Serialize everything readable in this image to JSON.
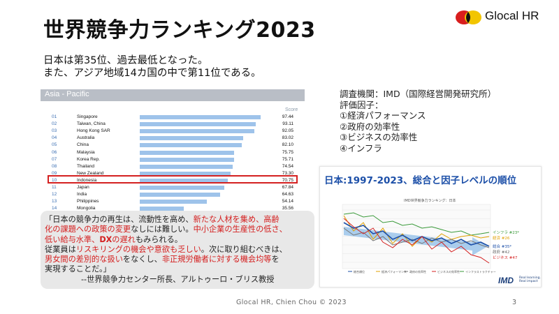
{
  "slide": {
    "title": "世界競争力ランキング2023",
    "logo_text": "Glocal HR",
    "intro_line1": "日本は第35位、過去最低となった。",
    "intro_line2": "また、アジア地域14カ国の中で第11位である。",
    "footer": "Glocal HR, Chien Chou © 2023",
    "page_number": "3"
  },
  "asia_pacific": {
    "header": "Asia - Pacific",
    "score_label": "Score",
    "rows": [
      {
        "rank": "01",
        "country": "Singapore",
        "score": "97.44"
      },
      {
        "rank": "02",
        "country": "Taiwan, China",
        "score": "93.11"
      },
      {
        "rank": "03",
        "country": "Hong Kong SAR",
        "score": "92.05"
      },
      {
        "rank": "04",
        "country": "Australia",
        "score": "83.02"
      },
      {
        "rank": "05",
        "country": "China",
        "score": "82.10"
      },
      {
        "rank": "06",
        "country": "Malaysia",
        "score": "75.75"
      },
      {
        "rank": "07",
        "country": "Korea Rep.",
        "score": "75.71"
      },
      {
        "rank": "08",
        "country": "Thailand",
        "score": "74.54"
      },
      {
        "rank": "09",
        "country": "New Zealand",
        "score": "73.30"
      },
      {
        "rank": "10",
        "country": "Indonesia",
        "score": "70.75"
      },
      {
        "rank": "11",
        "country": "Japan",
        "score": "67.84"
      },
      {
        "rank": "12",
        "country": "India",
        "score": "64.63"
      },
      {
        "rank": "13",
        "country": "Philippines",
        "score": "54.14"
      },
      {
        "rank": "14",
        "country": "Mongolia",
        "score": "35.56"
      }
    ]
  },
  "quote": {
    "l1a": "「日本の競争力の再生は、流動性を高め、",
    "l1b": "新たな人材を集め、高齢",
    "l2a": "化の課題への政策の変更",
    "l2b": "なしには難しい。",
    "l2c": "中小企業の生産性の低さ、",
    "l3a": "低い給与水準、",
    "l3b": "DX",
    "l3c": "の遅れ",
    "l3d": "もみられる。",
    "l4a": "従業員は",
    "l4b": "リスキリングの機会や意欲も乏しい",
    "l4c": "。次に取り組むべきは、",
    "l5a": "男女間の差別的な扱い",
    "l5b": "をなくし、",
    "l5c": "非正規労働者に対する機会均等",
    "l5d": "を",
    "l6": "実現することだ。」",
    "attribution": "--世界競争力センター所長、アルトゥーロ・ブリス教授"
  },
  "info": {
    "line1": "調査機関：IMD（国際経営開発研究所）",
    "line2": "評価因子：",
    "line3": "①経済パフォーマンス",
    "line4": "②政府の効率性",
    "line5": "③ビジネスの効率性",
    "line6": "④インフラ"
  },
  "trend": {
    "title": "日本:1997-2023、総合と因子レベルの順位",
    "subtitle": "IMD世界競争力ランキング：日本",
    "end_labels": [
      {
        "name": "インフラ",
        "rank": "#23*",
        "color": "#3a9a3a"
      },
      {
        "name": "経済",
        "rank": "#26",
        "color": "#e0a000"
      },
      {
        "name": "総合",
        "rank": "#35*",
        "color": "#1c4fa8"
      },
      {
        "name": "政府",
        "rank": "#42",
        "color": "#666666"
      },
      {
        "name": "ビジネス",
        "rank": "#47",
        "color": "#d42020"
      }
    ],
    "legend": [
      "総合順位",
      "経済パフォーマンス",
      "政府の効率性",
      "ビジネスの効率性",
      "インフラストラクチャー"
    ],
    "imd_logo": "IMD",
    "imd_sub": "Real learning. Real impact",
    "series_colors": {
      "overall": "#1c4fa8",
      "economy": "#e0a000",
      "government": "#777777",
      "business": "#d42020",
      "infrastructure": "#3a9a3a",
      "arrow": "#8fbde8"
    }
  }
}
